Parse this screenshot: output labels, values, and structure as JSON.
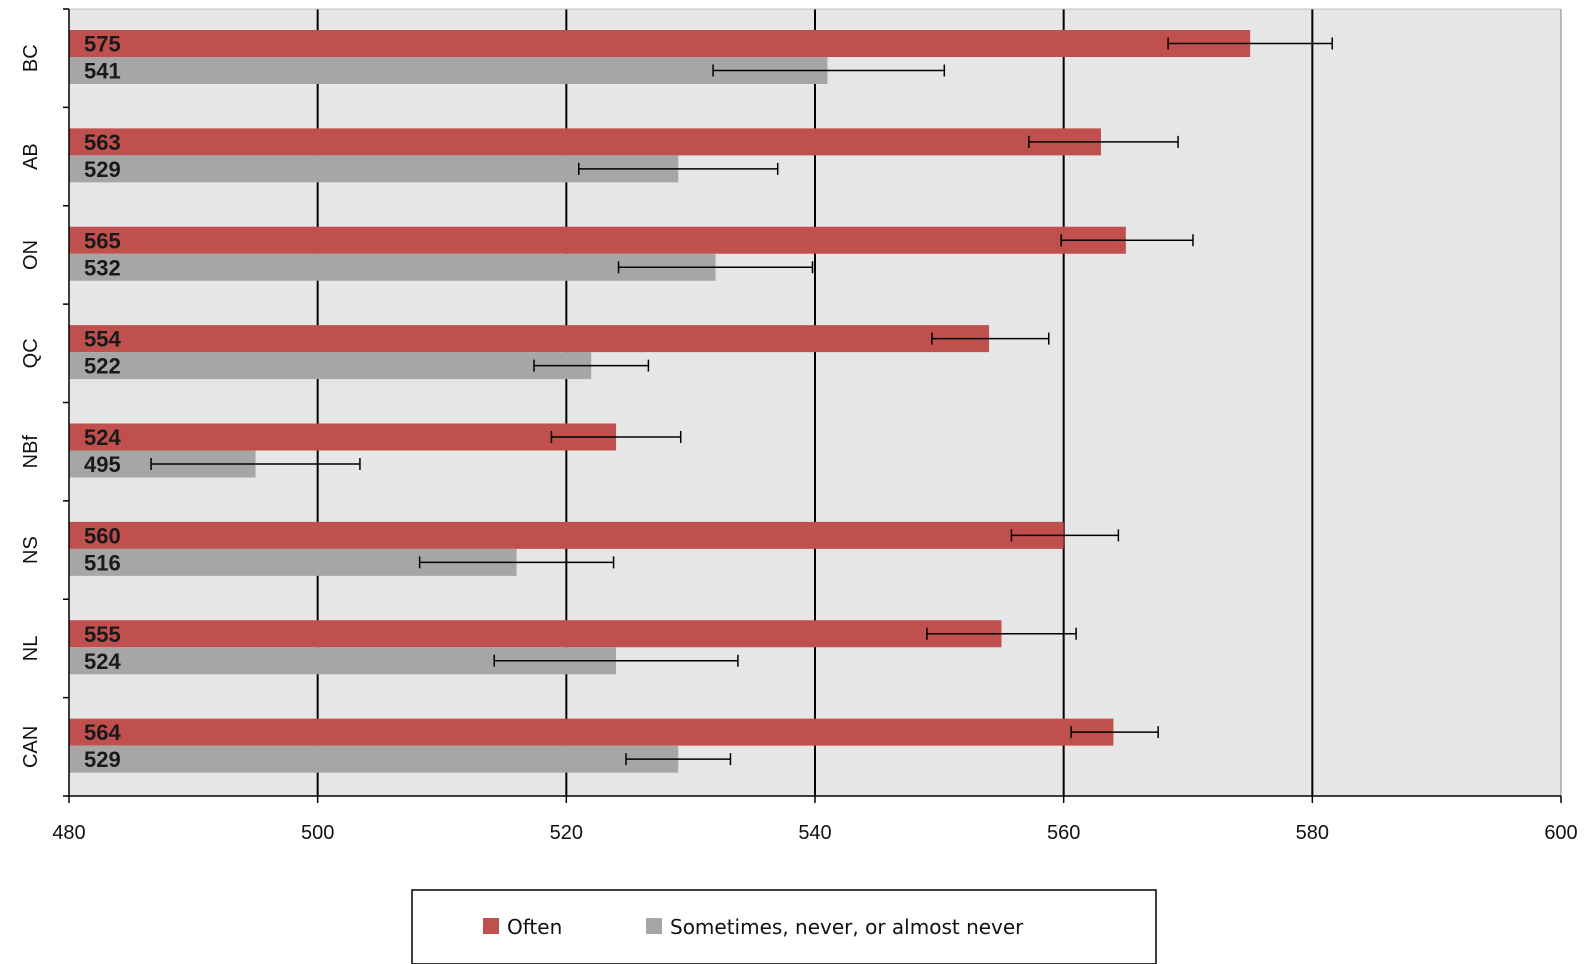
{
  "chart_data": {
    "type": "bar",
    "orientation": "horizontal",
    "categories": [
      "BC",
      "AB",
      "ON",
      "QC",
      "NBf",
      "NS",
      "NL",
      "CAN"
    ],
    "series": [
      {
        "name": "Often",
        "color": "#c0504d",
        "values": [
          575,
          563,
          565,
          554,
          524,
          560,
          555,
          564
        ],
        "error_low": [
          568.4,
          557.2,
          559.8,
          549.4,
          518.8,
          555.8,
          549.0,
          560.6
        ],
        "error_high": [
          581.6,
          569.2,
          570.4,
          558.8,
          529.2,
          564.4,
          561.0,
          567.6
        ]
      },
      {
        "name": "Sometimes, never, or almost never",
        "color": "#a6a6a6",
        "values": [
          541,
          529,
          532,
          522,
          495,
          516,
          524,
          529
        ],
        "error_low": [
          531.8,
          521.0,
          524.2,
          517.4,
          486.6,
          508.2,
          514.2,
          524.8
        ],
        "error_high": [
          550.4,
          537.0,
          539.8,
          526.6,
          503.4,
          523.8,
          533.8,
          533.2
        ]
      }
    ],
    "value_labels": {
      "often": [
        "575",
        "563",
        "565",
        "554",
        "524",
        "560",
        "555",
        "564"
      ],
      "sometimes": [
        "541",
        "529",
        "532",
        "522",
        "495",
        "516",
        "524",
        "529"
      ]
    },
    "xlim": [
      480,
      600
    ],
    "xticks": [
      480,
      500,
      520,
      540,
      560,
      580,
      600
    ],
    "xtick_labels": [
      "480",
      "500",
      "520",
      "540",
      "560",
      "580",
      "600"
    ],
    "grid": true,
    "plot_background": "#e6e6e6",
    "legend_position": "bottom",
    "title": "",
    "xlabel": "",
    "ylabel": ""
  },
  "legend": {
    "often_label": "Often",
    "sometimes_label": "Sometimes, never, or almost never",
    "often_color": "#c0504d",
    "sometimes_color": "#a6a6a6"
  }
}
